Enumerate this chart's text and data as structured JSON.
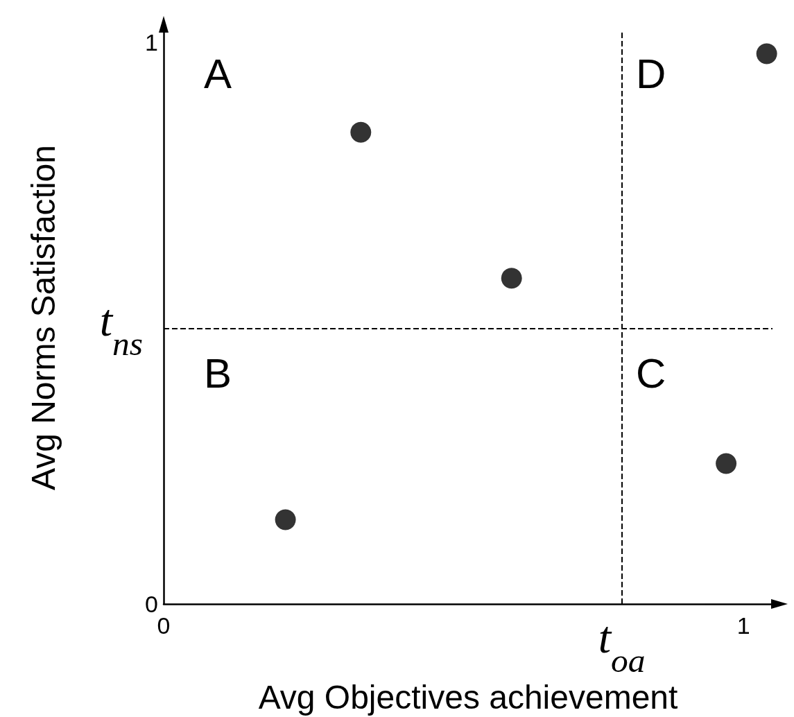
{
  "chart_data": {
    "type": "scatter",
    "xlabel": "Avg Objectives achievement",
    "ylabel": "Avg Norms Satisfaction",
    "x": [
      0.34,
      0.6,
      0.21,
      0.97,
      1.04
    ],
    "values": [
      0.84,
      0.58,
      0.15,
      0.25,
      0.98
    ],
    "color": "#000000",
    "marker": "circle",
    "grid": false,
    "xlim": [
      0,
      1.05
    ],
    "ylim": [
      0,
      1.02
    ],
    "xticks": [
      0,
      1
    ],
    "yticks": [
      0,
      1
    ],
    "ref_lines": [
      {
        "axis": "x",
        "value": 0.79,
        "label": "t$_{oa}$",
        "color": "#000000",
        "line_style": "dashed"
      },
      {
        "axis": "y",
        "value": 0.49,
        "label": "t$_{ns}$",
        "color": "#000000",
        "line_style": "dashed"
      }
    ],
    "annotations": [
      "A",
      "B",
      "C",
      "D"
    ]
  }
}
